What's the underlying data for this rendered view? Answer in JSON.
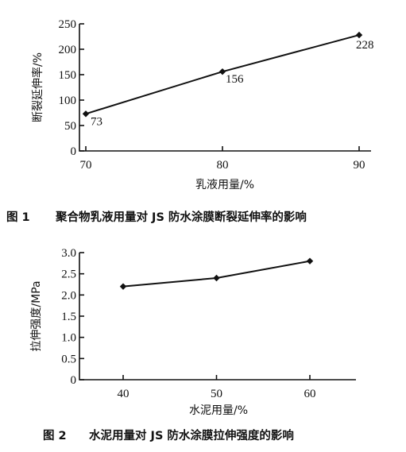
{
  "chart_data": [
    {
      "type": "line",
      "caption_num": "图 1",
      "caption_text": "聚合物乳液用量对 JS 防水涂膜断裂延伸率的影响",
      "xlabel": "乳液用量/%",
      "ylabel": "断裂延伸率/%",
      "x_ticks": [
        70,
        80,
        90
      ],
      "y_ticks": [
        0,
        50,
        100,
        150,
        200,
        250
      ],
      "xlim": [
        70,
        90
      ],
      "ylim": [
        0,
        250
      ],
      "series": [
        {
          "points": [
            {
              "x": 70,
              "y": 73,
              "label": "73"
            },
            {
              "x": 80,
              "y": 156,
              "label": "156"
            },
            {
              "x": 90,
              "y": 228,
              "label": "228"
            }
          ]
        }
      ]
    },
    {
      "type": "line",
      "caption_num": "图 2",
      "caption_text": "水泥用量对 JS 防水涂膜拉伸强度的影响",
      "xlabel": "水泥用量/%",
      "ylabel": "拉伸强度/MPa",
      "x_ticks": [
        40,
        50,
        60
      ],
      "y_ticks": [
        "0",
        "0.5",
        "1.0",
        "1.5",
        "2.0",
        "2.5",
        "3.0"
      ],
      "xlim": [
        40,
        60
      ],
      "ylim": [
        0,
        3.0
      ],
      "series": [
        {
          "points": [
            {
              "x": 40,
              "y": 2.2
            },
            {
              "x": 50,
              "y": 2.4
            },
            {
              "x": 60,
              "y": 2.8
            }
          ]
        }
      ]
    }
  ]
}
